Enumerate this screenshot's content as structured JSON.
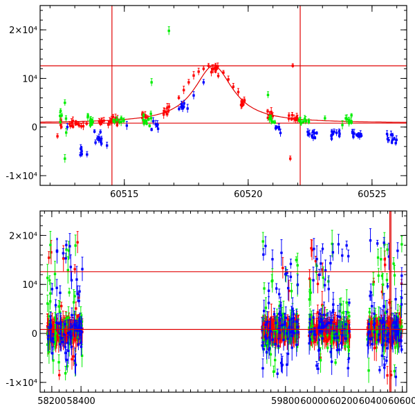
{
  "chart_data": [
    {
      "type": "scatter",
      "name": "zoom-panel",
      "xlim": [
        60511.6,
        60526.4
      ],
      "ylim": [
        -12000,
        25000
      ],
      "xticks": [
        {
          "value": 60515,
          "label": "60515"
        },
        {
          "value": 60520,
          "label": "60520"
        },
        {
          "value": 60525,
          "label": "60525"
        }
      ],
      "yticks": [
        {
          "value": 20000,
          "label": "2×10⁴"
        },
        {
          "value": 10000,
          "label": "10⁴"
        },
        {
          "value": 0,
          "label": "0"
        },
        {
          "value": -10000,
          "label": "-1×10⁴"
        }
      ],
      "hlines": [
        12600,
        800
      ],
      "vlines": [
        60514.5,
        60522.1
      ],
      "model_curve": {
        "peak_x": 60518.6,
        "peak_y": 12600,
        "baseline": 800,
        "width": 0.95
      },
      "series": [
        {
          "color": "#ff0000",
          "segments": [
            {
              "x0": 60512.3,
              "x1": 60512.5,
              "n": 4,
              "y": 1200,
              "spread": 1500
            },
            {
              "x0": 60512.7,
              "x1": 60513.5,
              "n": 14,
              "y": 700,
              "spread": 900
            },
            {
              "x0": 60513.9,
              "x1": 60514.2,
              "n": 6,
              "y": 900,
              "spread": 800
            },
            {
              "x0": 60514.3,
              "x1": 60514.9,
              "n": 12,
              "y": 1400,
              "spread": 1100
            },
            {
              "x0": 60515.7,
              "x1": 60516.0,
              "n": 8,
              "y": 2000,
              "spread": 900
            },
            {
              "x0": 60516.5,
              "x1": 60516.9,
              "n": 8,
              "y": 3300,
              "spread": 1000
            },
            {
              "x0": 60518.5,
              "x1": 60518.8,
              "n": 10,
              "y": 12000,
              "spread": 1300
            },
            {
              "x0": 60519.7,
              "x1": 60519.9,
              "n": 8,
              "y": 5000,
              "spread": 900
            },
            {
              "x0": 60520.7,
              "x1": 60521.0,
              "n": 8,
              "y": 2600,
              "spread": 800
            },
            {
              "x0": 60521.6,
              "x1": 60522.0,
              "n": 10,
              "y": 1700,
              "spread": 700
            }
          ],
          "points": [
            {
              "x": 60517.2,
              "y": 6000
            },
            {
              "x": 60517.4,
              "y": 7600
            },
            {
              "x": 60517.6,
              "y": 9200
            },
            {
              "x": 60517.8,
              "y": 10600
            },
            {
              "x": 60518.0,
              "y": 11400
            },
            {
              "x": 60518.2,
              "y": 12000
            },
            {
              "x": 60518.4,
              "y": 12600
            },
            {
              "x": 60519.0,
              "y": 11200
            },
            {
              "x": 60519.2,
              "y": 9800
            },
            {
              "x": 60519.4,
              "y": 8300
            },
            {
              "x": 60519.6,
              "y": 7200
            },
            {
              "x": 60521.8,
              "y": 12600
            },
            {
              "x": 60521.7,
              "y": -6500
            },
            {
              "x": 60512.3,
              "y": -1900
            }
          ]
        },
        {
          "color": "#00ee00",
          "segments": [
            {
              "x0": 60512.4,
              "x1": 60512.7,
              "n": 6,
              "y": 1500,
              "spread": 2500
            },
            {
              "x0": 60513.5,
              "x1": 60513.9,
              "n": 10,
              "y": 1100,
              "spread": 1200
            },
            {
              "x0": 60514.5,
              "x1": 60515.0,
              "n": 10,
              "y": 1200,
              "spread": 1000
            },
            {
              "x0": 60515.6,
              "x1": 60516.1,
              "n": 10,
              "y": 1600,
              "spread": 1200
            },
            {
              "x0": 60520.8,
              "x1": 60521.1,
              "n": 6,
              "y": 1500,
              "spread": 900
            },
            {
              "x0": 60522.0,
              "x1": 60522.5,
              "n": 10,
              "y": 1200,
              "spread": 1000
            },
            {
              "x0": 60523.8,
              "x1": 60524.2,
              "n": 10,
              "y": 1100,
              "spread": 900
            }
          ],
          "points": [
            {
              "x": 60512.6,
              "y": 5000
            },
            {
              "x": 60512.6,
              "y": -6500
            },
            {
              "x": 60516.8,
              "y": 19800
            },
            {
              "x": 60516.1,
              "y": 9200
            },
            {
              "x": 60520.8,
              "y": 6600
            },
            {
              "x": 60523.1,
              "y": 1800
            }
          ]
        },
        {
          "color": "#0000ff",
          "segments": [
            {
              "x0": 60513.2,
              "x1": 60513.5,
              "n": 6,
              "y": -5000,
              "spread": 1400
            },
            {
              "x0": 60513.7,
              "x1": 60514.1,
              "n": 10,
              "y": -2500,
              "spread": 1600
            },
            {
              "x0": 60516.1,
              "x1": 60516.4,
              "n": 6,
              "y": 0,
              "spread": 900
            },
            {
              "x0": 60517.2,
              "x1": 60517.6,
              "n": 8,
              "y": 4500,
              "spread": 900
            },
            {
              "x0": 60521.1,
              "x1": 60521.4,
              "n": 6,
              "y": -400,
              "spread": 800
            },
            {
              "x0": 60522.4,
              "x1": 60522.8,
              "n": 10,
              "y": -2000,
              "spread": 1000
            },
            {
              "x0": 60523.3,
              "x1": 60523.7,
              "n": 10,
              "y": -1200,
              "spread": 1000
            },
            {
              "x0": 60524.2,
              "x1": 60524.6,
              "n": 10,
              "y": -1500,
              "spread": 1100
            },
            {
              "x0": 60525.6,
              "x1": 60526.0,
              "n": 10,
              "y": -2500,
              "spread": 1100
            }
          ],
          "points": [
            {
              "x": 60512.7,
              "y": 0
            },
            {
              "x": 60514.3,
              "y": -3800
            },
            {
              "x": 60515.1,
              "y": 300
            },
            {
              "x": 60517.8,
              "y": 6500
            },
            {
              "x": 60518.2,
              "y": 9200
            }
          ]
        }
      ]
    },
    {
      "type": "scatter",
      "name": "full-panel",
      "xlim": [
        58120,
        60630
      ],
      "ylim": [
        -12000,
        25000
      ],
      "xticks": [
        {
          "value": 58200,
          "label": "58200"
        },
        {
          "value": 58400,
          "label": "58400"
        },
        {
          "value": 59800,
          "label": "59800"
        },
        {
          "value": 60000,
          "label": "60000"
        },
        {
          "value": 60200,
          "label": "60200"
        },
        {
          "value": 60400,
          "label": "60400"
        },
        {
          "value": 60600,
          "label": "60600"
        }
      ],
      "yticks": [
        {
          "value": 20000,
          "label": "2×10⁴"
        },
        {
          "value": 10000,
          "label": "10⁴"
        },
        {
          "value": 0,
          "label": "0"
        },
        {
          "value": -10000,
          "label": "-1×10⁴"
        }
      ],
      "hlines": [
        12600,
        800
      ],
      "vlines": [
        60514.5,
        60522.1
      ],
      "seasons": [
        {
          "x0": 58170,
          "x1": 58410
        },
        {
          "x0": 59640,
          "x1": 59890
        },
        {
          "x0": 59960,
          "x1": 60240
        },
        {
          "x0": 60360,
          "x1": 60600
        }
      ],
      "series": [
        {
          "color": "#ff0000",
          "n_per_season": 240,
          "core_spread": 1200,
          "outlier_frac": 0.05
        },
        {
          "color": "#00ee00",
          "n_per_season": 60,
          "core_spread": 3500,
          "outlier_frac": 0.45
        },
        {
          "color": "#0000ff",
          "n_per_season": 70,
          "core_spread": 3500,
          "outlier_frac": 0.35
        }
      ]
    }
  ]
}
